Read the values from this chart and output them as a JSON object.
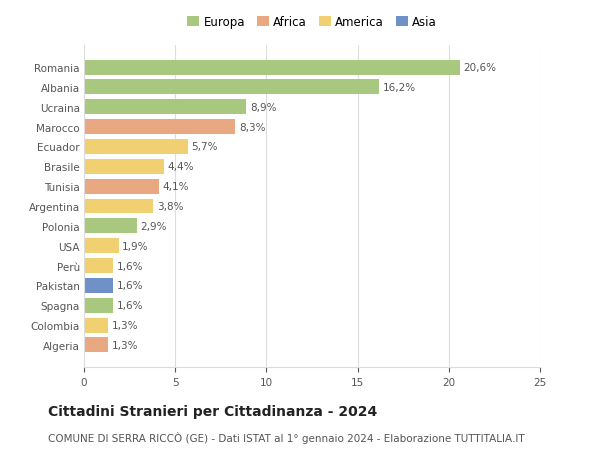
{
  "countries": [
    "Romania",
    "Albania",
    "Ucraina",
    "Marocco",
    "Ecuador",
    "Brasile",
    "Tunisia",
    "Argentina",
    "Polonia",
    "USA",
    "Perù",
    "Pakistan",
    "Spagna",
    "Colombia",
    "Algeria"
  ],
  "values": [
    20.6,
    16.2,
    8.9,
    8.3,
    5.7,
    4.4,
    4.1,
    3.8,
    2.9,
    1.9,
    1.6,
    1.6,
    1.6,
    1.3,
    1.3
  ],
  "labels": [
    "20,6%",
    "16,2%",
    "8,9%",
    "8,3%",
    "5,7%",
    "4,4%",
    "4,1%",
    "3,8%",
    "2,9%",
    "1,9%",
    "1,6%",
    "1,6%",
    "1,6%",
    "1,3%",
    "1,3%"
  ],
  "continents": [
    "Europa",
    "Europa",
    "Europa",
    "Africa",
    "America",
    "America",
    "Africa",
    "America",
    "Europa",
    "America",
    "America",
    "Asia",
    "Europa",
    "America",
    "Africa"
  ],
  "continent_colors": {
    "Europa": "#a8c880",
    "Africa": "#e8a882",
    "America": "#f0d070",
    "Asia": "#7090c8"
  },
  "legend_order": [
    "Europa",
    "Africa",
    "America",
    "Asia"
  ],
  "title": "Cittadini Stranieri per Cittadinanza - 2024",
  "subtitle": "COMUNE DI SERRA RICCÒ (GE) - Dati ISTAT al 1° gennaio 2024 - Elaborazione TUTTITALIA.IT",
  "xlim": [
    0,
    25
  ],
  "xticks": [
    0,
    5,
    10,
    15,
    20,
    25
  ],
  "background_color": "#ffffff",
  "grid_color": "#dddddd",
  "bar_height": 0.75,
  "title_fontsize": 10,
  "subtitle_fontsize": 7.5,
  "label_fontsize": 7.5,
  "tick_fontsize": 7.5,
  "legend_fontsize": 8.5
}
